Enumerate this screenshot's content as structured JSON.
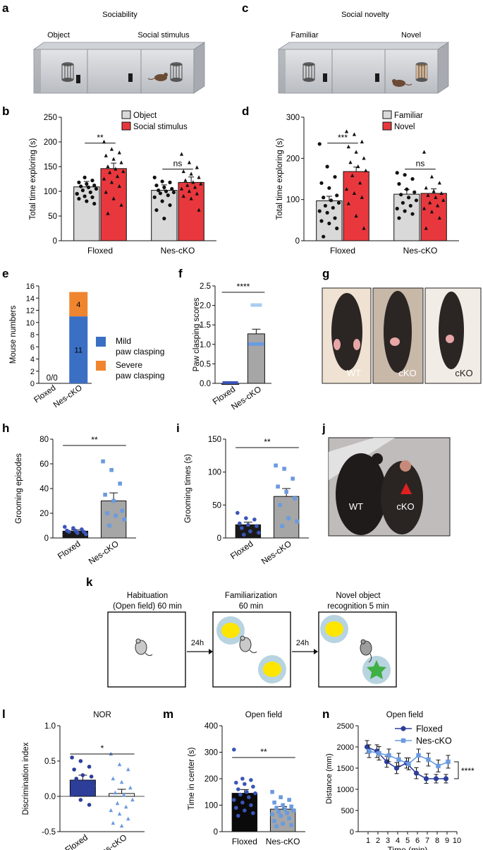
{
  "panel_letters": {
    "a": "a",
    "b": "b",
    "c": "c",
    "d": "d",
    "e": "e",
    "f": "f",
    "g": "g",
    "h": "h",
    "i": "i",
    "j": "j",
    "k": "k",
    "l": "l",
    "m": "m",
    "n": "n"
  },
  "panel_a": {
    "title": "Sociability",
    "left_label": "Object",
    "right_label": "Social stimulus"
  },
  "panel_c": {
    "title": "Social novelty",
    "left_label": "Familiar",
    "right_label": "Novel"
  },
  "panel_g": {
    "labels": [
      "WT",
      "cKO",
      "cKO"
    ]
  },
  "panel_j": {
    "labels": [
      "WT",
      "cKO"
    ]
  },
  "panel_k": {
    "boxes": [
      {
        "line1": "Habituation",
        "line2": "(Open field) 60 min"
      },
      {
        "line1": "Familiarization",
        "line2": "60 min"
      },
      {
        "line1": "Novel object",
        "line2": "recognition 5 min"
      }
    ],
    "arrows": [
      "24h",
      "24h"
    ]
  },
  "chart_data": [
    {
      "id": "b",
      "type": "bar",
      "title": "",
      "ylabel": "Total time exploring (s)",
      "ylim": [
        0,
        250
      ],
      "yticks": [
        "0",
        "50",
        "100",
        "150",
        "200",
        "250"
      ],
      "groups": [
        "Floxed",
        "Nes-cKO"
      ],
      "series": [
        {
          "name": "Object",
          "color": "#d9d9d9",
          "values": [
            109,
            102
          ],
          "points": [
            [
              95,
              128,
              122,
              118,
              115,
              112,
              110,
              108,
              105,
              102,
              98,
              95,
              90,
              88,
              85,
              80,
              75
            ],
            [
              128,
              120,
              118,
              112,
              108,
              105,
              102,
              100,
              98,
              96,
              92,
              88,
              80,
              72,
              62,
              45
            ]
          ]
        },
        {
          "name": "Social stimulus",
          "color": "#e8383d",
          "values": [
            146,
            118
          ],
          "points": [
            [
              200,
              185,
              178,
              172,
              165,
              158,
              150,
              145,
              140,
              138,
              130,
              125,
              118,
              110,
              98,
              85,
              72,
              55
            ],
            [
              175,
              158,
              148,
              140,
              135,
              128,
              122,
              118,
              115,
              112,
              108,
              105,
              100,
              95,
              90,
              85,
              62
            ]
          ]
        }
      ],
      "significance": [
        {
          "group": "Floxed",
          "label": "**"
        },
        {
          "group": "Nes-cKO",
          "label": "ns"
        }
      ]
    },
    {
      "id": "d",
      "type": "bar",
      "ylabel": "Total time exploring (s)",
      "ylim": [
        0,
        300
      ],
      "yticks": [
        "0",
        "100",
        "200",
        "300"
      ],
      "groups": [
        "Floxed",
        "Nes-cKO"
      ],
      "series": [
        {
          "name": "Familiar",
          "color": "#d9d9d9",
          "values": [
            97,
            113
          ],
          "points": [
            [
              235,
              180,
              155,
              140,
              128,
              110,
              105,
              98,
              92,
              85,
              80,
              72,
              68,
              55,
              48,
              42,
              30,
              10
            ],
            [
              165,
              160,
              150,
              138,
              125,
              118,
              112,
              105,
              98,
              92,
              85,
              78,
              72,
              65,
              55
            ]
          ]
        },
        {
          "name": "Novel",
          "color": "#e8383d",
          "values": [
            168,
            115
          ],
          "points": [
            [
              265,
              258,
              240,
              228,
              215,
              200,
              190,
              180,
              170,
              158,
              140,
              125,
              115,
              105,
              90,
              60,
              30
            ],
            [
              215,
              155,
              140,
              128,
              120,
              115,
              110,
              105,
              98,
              92,
              85,
              78,
              70,
              55,
              30
            ]
          ]
        }
      ],
      "significance": [
        {
          "group": "Floxed",
          "label": "***"
        },
        {
          "group": "Nes-cKO",
          "label": "ns"
        }
      ]
    },
    {
      "id": "e",
      "type": "bar",
      "ylabel": "Mouse numbers",
      "ylim": [
        0,
        16
      ],
      "yticks": [
        "0",
        "2",
        "4",
        "6",
        "8",
        "10",
        "12",
        "14",
        "16"
      ],
      "categories": [
        "Floxed",
        "Nes-cKO"
      ],
      "series": [
        {
          "name": "Mild paw clasping",
          "name_line1": "Mild",
          "name_line2": "paw clasping",
          "color": "#3b6fc4",
          "values": [
            0,
            11
          ],
          "labels": [
            "",
            "11"
          ]
        },
        {
          "name": "Severe paw clasping",
          "name_line1": "Severe",
          "name_line2": "paw clasping",
          "color": "#f0852f",
          "values": [
            0,
            4
          ],
          "labels": [
            "",
            "4"
          ]
        }
      ],
      "floxed_annotation": "0/0"
    },
    {
      "id": "f",
      "type": "bar",
      "ylabel": "Paw clasping scores",
      "ylim": [
        0,
        2.5
      ],
      "yticks": [
        "0.0",
        "0.5",
        "1.0",
        "1.5",
        "2.0",
        "2.5"
      ],
      "categories": [
        "Floxed",
        "Nes-cKO"
      ],
      "values": [
        0.0,
        1.27
      ],
      "errors": [
        0.0,
        0.12
      ],
      "colors": [
        "#2c3e9a",
        "#a6a6a6"
      ],
      "significance": "****"
    },
    {
      "id": "h",
      "type": "bar",
      "ylabel": "Grooming episodes",
      "ylim": [
        0,
        80
      ],
      "yticks": [
        "0",
        "20",
        "40",
        "60",
        "80"
      ],
      "categories": [
        "Floxed",
        "Nes-cKO"
      ],
      "values": [
        5.5,
        30
      ],
      "errors": [
        1.0,
        6.5
      ],
      "colors": [
        "#1a1a1a",
        "#a6a6a6"
      ],
      "points": [
        [
          9,
          8,
          7,
          6,
          6,
          5,
          5,
          4,
          3
        ],
        [
          62,
          55,
          44,
          35,
          30,
          22,
          20,
          18,
          15,
          10
        ]
      ],
      "significance": "**"
    },
    {
      "id": "i",
      "type": "bar",
      "ylabel": "Grooming times (s)",
      "ylim": [
        0,
        150
      ],
      "yticks": [
        "0",
        "50",
        "100",
        "150"
      ],
      "categories": [
        "Floxed",
        "Nes-cKO"
      ],
      "values": [
        20,
        63
      ],
      "errors": [
        4,
        12
      ],
      "colors": [
        "#1a1a1a",
        "#a6a6a6"
      ],
      "points": [
        [
          38,
          30,
          28,
          22,
          20,
          18,
          15,
          10,
          8,
          5
        ],
        [
          110,
          105,
          90,
          78,
          70,
          60,
          50,
          30,
          25,
          18
        ]
      ],
      "significance": "**"
    },
    {
      "id": "l",
      "type": "bar",
      "title": "NOR",
      "ylabel": "Discrimination index",
      "ylim": [
        -0.5,
        1.0
      ],
      "yticks": [
        "-0.5",
        "0.0",
        "0.5",
        "1.0"
      ],
      "categories": [
        "Floxed",
        "Nes-cKO"
      ],
      "values": [
        0.23,
        0.04
      ],
      "errors": [
        0.07,
        0.06
      ],
      "colors": [
        "#2c3e9a",
        "#ffffff"
      ],
      "points": [
        [
          0.55,
          0.5,
          0.42,
          0.38,
          0.3,
          0.28,
          0.25,
          0.2,
          0.15,
          0.1,
          0.05,
          0.02,
          -0.05,
          -0.12
        ],
        [
          0.6,
          0.45,
          0.38,
          0.25,
          0.2,
          0.12,
          0.05,
          0.02,
          -0.05,
          -0.1,
          -0.15,
          -0.2,
          -0.25,
          -0.32,
          -0.38,
          -0.42
        ]
      ],
      "significance": "*"
    },
    {
      "id": "m",
      "type": "bar",
      "title": "Open field",
      "ylabel": "Time in center (s)",
      "ylim": [
        0,
        400
      ],
      "yticks": [
        "0",
        "100",
        "200",
        "300",
        "400"
      ],
      "categories": [
        "Floxed",
        "Nes-cKO"
      ],
      "values": [
        145,
        85
      ],
      "errors": [
        14,
        10
      ],
      "colors": [
        "#0a0a0a",
        "#a6a6a6"
      ],
      "points": [
        [
          310,
          200,
          195,
          185,
          180,
          170,
          160,
          150,
          145,
          140,
          130,
          120,
          110,
          100,
          90,
          80,
          70,
          60
        ],
        [
          150,
          130,
          120,
          110,
          100,
          95,
          90,
          85,
          80,
          75,
          70,
          65,
          60,
          50,
          40,
          30,
          25,
          20
        ]
      ],
      "significance": "**"
    },
    {
      "id": "n",
      "type": "line",
      "title": "Open field",
      "xlabel": "Time (min)",
      "ylabel": "Distance (mm)",
      "ylim": [
        0,
        2500
      ],
      "yticks": [
        "0",
        "500",
        "1000",
        "1500",
        "2000",
        "2500"
      ],
      "xlim": [
        0,
        10
      ],
      "xticks": [
        "1",
        "2",
        "3",
        "4",
        "5",
        "6",
        "7",
        "8",
        "9",
        "10"
      ],
      "x": [
        1,
        2,
        3,
        4,
        5,
        6,
        7,
        8,
        9
      ],
      "series": [
        {
          "name": "Floxed",
          "color": "#2c3e9a",
          "values": [
            2000,
            1900,
            1650,
            1500,
            1620,
            1380,
            1250,
            1250,
            1250
          ],
          "errors": [
            150,
            150,
            130,
            130,
            120,
            130,
            110,
            100,
            100
          ]
        },
        {
          "name": "Nes-cKO",
          "color": "#6a9be0",
          "values": [
            1900,
            1850,
            1800,
            1700,
            1600,
            1800,
            1700,
            1550,
            1650
          ],
          "errors": [
            150,
            160,
            150,
            150,
            140,
            150,
            150,
            140,
            150
          ]
        }
      ],
      "significance": "****"
    }
  ]
}
